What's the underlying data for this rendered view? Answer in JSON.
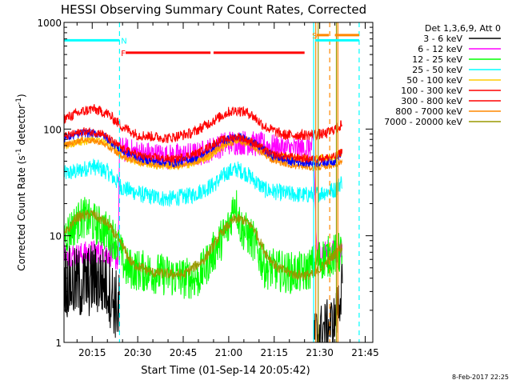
{
  "chart_data": {
    "type": "line",
    "title": "HESSI Observing Summary Count Rates, Corrected",
    "xlabel": "Start Time (01-Sep-14 20:05:42)",
    "ylabel": "Corrected Count Rate (s⁻¹ detector⁻¹)",
    "ylabel_main": "Corrected Count Rate (s",
    "ylabel_sup1": "-1",
    "ylabel_mid": " detector",
    "ylabel_sup2": "-1",
    "ylabel_end": ")",
    "x_ticklabels": [
      "20:15",
      "20:30",
      "20:45",
      "21:00",
      "21:15",
      "21:30",
      "21:45"
    ],
    "x_ticks_min": [
      15,
      30,
      45,
      60,
      75,
      90,
      105
    ],
    "x_range_min": [
      5.7,
      107.5
    ],
    "y_scale": "log",
    "ylim": [
      1,
      1000
    ],
    "y_ticklabels": [
      "1",
      "10",
      "100",
      "1000"
    ],
    "legend_title": "Det 1,3,6,9, Att 0",
    "legend_position": "right",
    "series": [
      {
        "name": "3 - 6 keV",
        "color": "#000000",
        "curve": [
          [
            5.7,
            4
          ],
          [
            8,
            3.5
          ],
          [
            12,
            3.5
          ],
          [
            16,
            4
          ],
          [
            20,
            3.5
          ],
          [
            23,
            2.2
          ],
          [
            24,
            2.0
          ]
        ],
        "gaps": [
          [
            24,
            88
          ]
        ],
        "tail": [
          [
            88,
            1.2
          ],
          [
            92,
            1.4
          ],
          [
            95,
            1.6
          ],
          [
            97.5,
            3.5
          ]
        ],
        "noise": 0.35,
        "mid": [
          [
            24,
            80
          ],
          [
            30,
            65
          ],
          [
            40,
            55
          ],
          [
            50,
            55
          ],
          [
            60,
            70
          ],
          [
            65,
            72
          ],
          [
            75,
            68
          ],
          [
            85,
            60
          ],
          [
            88,
            60
          ]
        ]
      },
      {
        "name": "6 - 12 keV",
        "color": "#ff00ff",
        "curve": [
          [
            5.7,
            7
          ],
          [
            10,
            6.5
          ],
          [
            15,
            7
          ],
          [
            20,
            7
          ],
          [
            23.5,
            6
          ],
          [
            24,
            65
          ],
          [
            30,
            60
          ],
          [
            40,
            55
          ],
          [
            50,
            58
          ],
          [
            60,
            75
          ],
          [
            65,
            75
          ],
          [
            75,
            68
          ],
          [
            80,
            65
          ],
          [
            85,
            65
          ],
          [
            88,
            70
          ],
          [
            89,
            7
          ],
          [
            95,
            7
          ],
          [
            97.5,
            7
          ]
        ],
        "noise": 0.12
      },
      {
        "name": "12 - 25 keV",
        "color": "#00ff00",
        "curve": [
          [
            5.7,
            10
          ],
          [
            12,
            15
          ],
          [
            18,
            12
          ],
          [
            23,
            9
          ],
          [
            26,
            5
          ],
          [
            35,
            4.5
          ],
          [
            45,
            4
          ],
          [
            50,
            4
          ],
          [
            55,
            7
          ],
          [
            60,
            12
          ],
          [
            62,
            22
          ],
          [
            64,
            12
          ],
          [
            68,
            9
          ],
          [
            72,
            5
          ],
          [
            80,
            4.5
          ],
          [
            85,
            4.5
          ],
          [
            90,
            6
          ],
          [
            97.5,
            7
          ]
        ],
        "noise": 0.2
      },
      {
        "name": "25 - 50 keV",
        "color": "#00ffff",
        "curve": [
          [
            5.7,
            38
          ],
          [
            10,
            40
          ],
          [
            15,
            45
          ],
          [
            20,
            40
          ],
          [
            25,
            28
          ],
          [
            32,
            24
          ],
          [
            40,
            22
          ],
          [
            48,
            24
          ],
          [
            55,
            30
          ],
          [
            60,
            40
          ],
          [
            63,
            42
          ],
          [
            66,
            38
          ],
          [
            72,
            27
          ],
          [
            78,
            25
          ],
          [
            85,
            24
          ],
          [
            90,
            25
          ],
          [
            95,
            27
          ],
          [
            97.5,
            33
          ]
        ],
        "noise": 0.08
      },
      {
        "name": "50 - 100 keV",
        "color": "#ffcc00",
        "curve": [
          [
            5.7,
            70
          ],
          [
            15,
            80
          ],
          [
            22,
            72
          ],
          [
            27,
            52
          ],
          [
            35,
            46
          ],
          [
            45,
            45
          ],
          [
            52,
            52
          ],
          [
            60,
            75
          ],
          [
            64,
            82
          ],
          [
            68,
            75
          ],
          [
            74,
            58
          ],
          [
            80,
            52
          ],
          [
            88,
            52
          ],
          [
            95,
            55
          ],
          [
            97.5,
            62
          ]
        ],
        "noise": 0.04
      },
      {
        "name": "100 - 300 keV",
        "color": "#ff0000",
        "curve": [
          [
            5.7,
            125
          ],
          [
            10,
            140
          ],
          [
            15,
            155
          ],
          [
            20,
            140
          ],
          [
            25,
            105
          ],
          [
            30,
            88
          ],
          [
            40,
            82
          ],
          [
            48,
            92
          ],
          [
            55,
            120
          ],
          [
            60,
            145
          ],
          [
            63,
            150
          ],
          [
            67,
            140
          ],
          [
            72,
            105
          ],
          [
            78,
            88
          ],
          [
            85,
            88
          ],
          [
            92,
            90
          ],
          [
            97.5,
            110
          ]
        ],
        "noise": 0.05
      },
      {
        "name": "300 - 800 keV",
        "color": "#ff0000",
        "curve": [
          [
            5.7,
            85
          ],
          [
            12,
            95
          ],
          [
            18,
            92
          ],
          [
            25,
            65
          ],
          [
            32,
            55
          ],
          [
            42,
            52
          ],
          [
            50,
            60
          ],
          [
            57,
            78
          ],
          [
            63,
            85
          ],
          [
            68,
            75
          ],
          [
            74,
            58
          ],
          [
            80,
            55
          ],
          [
            88,
            52
          ],
          [
            95,
            55
          ],
          [
            97.5,
            62
          ]
        ],
        "noise": 0.04
      },
      {
        "name": "800 - 7000 keV",
        "color": "#ff8800",
        "curve": [
          [
            5.7,
            70
          ],
          [
            12,
            80
          ],
          [
            18,
            75
          ],
          [
            25,
            55
          ],
          [
            32,
            48
          ],
          [
            42,
            45
          ],
          [
            50,
            50
          ],
          [
            57,
            68
          ],
          [
            63,
            78
          ],
          [
            68,
            68
          ],
          [
            74,
            52
          ],
          [
            80,
            46
          ],
          [
            88,
            43
          ],
          [
            95,
            46
          ],
          [
            97.5,
            50
          ]
        ],
        "noise": 0.03
      },
      {
        "name": "7000 - 20000 keV",
        "color": "#999900",
        "curve": [
          [
            5.7,
            10
          ],
          [
            10,
            15
          ],
          [
            15,
            16
          ],
          [
            20,
            13
          ],
          [
            25,
            8
          ],
          [
            28,
            5.5
          ],
          [
            35,
            4.5
          ],
          [
            45,
            4.3
          ],
          [
            52,
            6
          ],
          [
            58,
            11
          ],
          [
            62,
            14.5
          ],
          [
            65,
            14
          ],
          [
            68,
            12
          ],
          [
            72,
            7
          ],
          [
            76,
            5
          ],
          [
            82,
            4.3
          ],
          [
            88,
            4.3
          ],
          [
            92,
            5.5
          ],
          [
            97.5,
            8
          ]
        ],
        "noise": 0.05
      },
      {
        "name": "",
        "color": "#0000ff",
        "curve": [
          [
            5.7,
            82
          ],
          [
            12,
            92
          ],
          [
            18,
            90
          ],
          [
            25,
            62
          ],
          [
            32,
            52
          ],
          [
            42,
            48
          ],
          [
            50,
            55
          ],
          [
            57,
            75
          ],
          [
            63,
            86
          ],
          [
            68,
            75
          ],
          [
            74,
            57
          ],
          [
            80,
            50
          ],
          [
            88,
            48
          ],
          [
            95,
            50
          ],
          [
            97.5,
            62
          ]
        ],
        "noise": 0.04
      }
    ],
    "flags": [
      {
        "label": "N",
        "color": "#00ffff",
        "segments": [
          [
            5.7,
            24
          ]
        ],
        "y": 680,
        "label_x": 24.5
      },
      {
        "label": "F",
        "color": "#ff0000",
        "segments": [
          [
            26,
            54
          ],
          [
            55,
            85
          ]
        ],
        "y": 520,
        "label_x": 24.5
      },
      {
        "label": "S",
        "color": "#ff8800",
        "segments": [
          [
            89,
            93
          ],
          [
            95,
            103
          ]
        ],
        "y": 760,
        "label_x": 87.5
      },
      {
        "label": "",
        "color": "#00ffff",
        "segments": [
          [
            88.5,
            103
          ]
        ],
        "y": 680
      }
    ],
    "vlines": [
      {
        "x": 24,
        "color": "#00ffff",
        "dash": true
      },
      {
        "x": 88,
        "color": "#00ffff",
        "dash": false
      },
      {
        "x": 88.7,
        "color": "#ff8800",
        "dash": false
      },
      {
        "x": 89.5,
        "color": "#999900",
        "dash": false
      },
      {
        "x": 93.3,
        "color": "#ff8800",
        "dash": true
      },
      {
        "x": 95.5,
        "color": "#999900",
        "dash": false
      },
      {
        "x": 96,
        "color": "#ff8800",
        "dash": false
      },
      {
        "x": 103,
        "color": "#00ffff",
        "dash": true
      }
    ],
    "date_stamp": "8-Feb-2017 22:25"
  }
}
